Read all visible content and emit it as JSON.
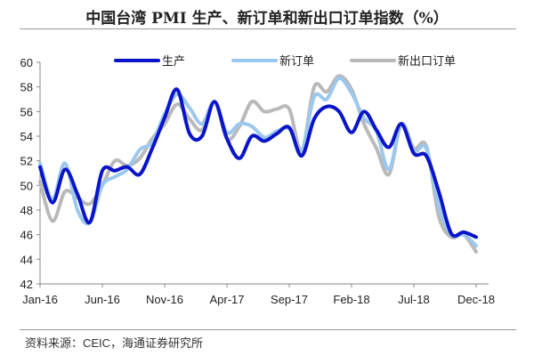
{
  "title": "中国台湾 PMI 生产、新订单和新出口订单指数（%）",
  "source": "资料来源：CEIC，海通证券研究所",
  "chart_data": {
    "type": "line",
    "title": "中国台湾 PMI 生产、新订单和新出口订单指数（%）",
    "xlabel": "",
    "ylabel": "",
    "ylim": [
      42,
      60
    ],
    "yticks": [
      42,
      44,
      46,
      48,
      50,
      52,
      54,
      56,
      58,
      60
    ],
    "xtick_labels": [
      "Jan-16",
      "Jun-16",
      "Nov-16",
      "Apr-17",
      "Sep-17",
      "Feb-18",
      "Jul-18",
      "Dec-18"
    ],
    "xtick_every": 5,
    "x": [
      "Jan-16",
      "Feb-16",
      "Mar-16",
      "Apr-16",
      "May-16",
      "Jun-16",
      "Jul-16",
      "Aug-16",
      "Sep-16",
      "Oct-16",
      "Nov-16",
      "Dec-16",
      "Jan-17",
      "Feb-17",
      "Mar-17",
      "Apr-17",
      "May-17",
      "Jun-17",
      "Jul-17",
      "Aug-17",
      "Sep-17",
      "Oct-17",
      "Nov-17",
      "Dec-17",
      "Jan-18",
      "Feb-18",
      "Mar-18",
      "Apr-18",
      "May-18",
      "Jun-18",
      "Jul-18",
      "Aug-18",
      "Sep-18",
      "Oct-18",
      "Nov-18",
      "Dec-18"
    ],
    "legend_position": "top",
    "grid": false,
    "series": [
      {
        "name": "生产",
        "color": "#0a14c8",
        "values": [
          51.5,
          48.6,
          51.3,
          49.3,
          47.0,
          51.2,
          51.2,
          51.5,
          50.9,
          53.0,
          55.5,
          57.8,
          54.2,
          54.0,
          56.8,
          53.8,
          52.2,
          54.0,
          53.6,
          54.2,
          54.7,
          52.4,
          55.4,
          56.4,
          56.0,
          54.3,
          56.0,
          54.5,
          53.1,
          55.0,
          52.6,
          52.4,
          49.5,
          46.1,
          46.2,
          45.8
        ]
      },
      {
        "name": "新订单",
        "color": "#9cc8f0",
        "values": [
          51.8,
          48.9,
          51.8,
          48.0,
          47.0,
          50.0,
          50.7,
          51.3,
          52.9,
          53.5,
          55.8,
          57.4,
          56.3,
          55.0,
          56.8,
          54.3,
          55.0,
          54.8,
          53.9,
          54.4,
          54.6,
          52.8,
          57.2,
          57.0,
          58.7,
          57.5,
          55.5,
          54.4,
          51.3,
          55.0,
          52.8,
          53.0,
          48.3,
          46.0,
          46.0,
          45.1
        ]
      },
      {
        "name": "新出口订单",
        "color": "#b9b9b9",
        "values": [
          50.3,
          47.1,
          49.5,
          49.0,
          48.5,
          50.0,
          52.0,
          51.6,
          52.2,
          53.8,
          55.0,
          56.6,
          55.4,
          54.5,
          56.8,
          53.8,
          54.8,
          56.8,
          56.0,
          56.2,
          56.2,
          52.8,
          58.0,
          57.6,
          58.9,
          57.8,
          55.0,
          53.0,
          50.9,
          55.0,
          53.0,
          53.2,
          47.5,
          45.8,
          46.0,
          44.6
        ]
      }
    ]
  }
}
